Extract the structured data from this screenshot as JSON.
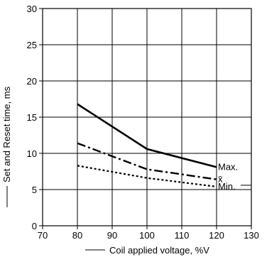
{
  "chart_data": {
    "type": "line",
    "xlabel": "Coil applied voltage, %V",
    "ylabel": "Set and Reset time, ms",
    "xlim": [
      70,
      130
    ],
    "ylim": [
      0,
      30
    ],
    "x_ticks": [
      70,
      80,
      90,
      100,
      110,
      120,
      130
    ],
    "y_ticks": [
      0,
      5,
      10,
      15,
      20,
      25,
      30
    ],
    "grid": true,
    "series": [
      {
        "name": "Max.",
        "style": "solid",
        "x": [
          80,
          100,
          120
        ],
        "y": [
          16.8,
          10.6,
          8.1
        ]
      },
      {
        "name": "x̄",
        "style": "dashdot",
        "x": [
          80,
          100,
          120
        ],
        "y": [
          11.4,
          7.8,
          6.4
        ]
      },
      {
        "name": "Min.",
        "style": "dotted",
        "x": [
          80,
          100,
          120
        ],
        "y": [
          8.3,
          6.6,
          5.4
        ]
      }
    ]
  }
}
